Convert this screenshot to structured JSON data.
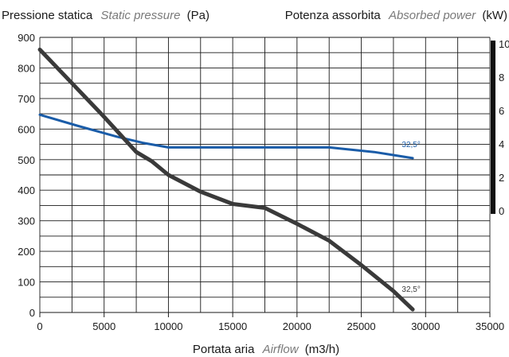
{
  "chart_data": {
    "type": "line",
    "y_title": {
      "it_label": "Pressione statica",
      "en_label": "Static pressure",
      "unit": "(Pa)"
    },
    "y2_title": {
      "it_label": "Potenza assorbita",
      "en_label": "Absorbed power",
      "unit": "(kW)"
    },
    "x_title": {
      "it_label": "Portata aria",
      "en_label": "Airflow",
      "unit": "(m3/h)"
    },
    "xlim": [
      0,
      35000
    ],
    "ylim": [
      0,
      900
    ],
    "x_ticks": [
      "0",
      "5000",
      "10000",
      "15000",
      "20000",
      "25000",
      "30000",
      "35000"
    ],
    "y_ticks": [
      "0",
      "100",
      "200",
      "300",
      "400",
      "500",
      "600",
      "700",
      "800",
      "900"
    ],
    "right_axis_partial_ticks": [
      "10",
      "8",
      "6",
      "4",
      "2",
      "0"
    ],
    "grid": true,
    "series": [
      {
        "label": "32,5°",
        "color": "#1a5ca8",
        "x": [
          0,
          3000,
          6000,
          8000,
          10000,
          15000,
          20000,
          22500,
          26000,
          29000
        ],
        "y": [
          647,
          610,
          575,
          555,
          540,
          540,
          540,
          540,
          525,
          505
        ]
      },
      {
        "label": "32,5°",
        "color": "#3a3a3a",
        "x": [
          0,
          2500,
          5000,
          7500,
          8700,
          10000,
          12500,
          15000,
          17500,
          20000,
          22500,
          25000,
          27500,
          29000
        ],
        "y": [
          860,
          750,
          640,
          525,
          495,
          450,
          395,
          355,
          342,
          290,
          235,
          155,
          70,
          10
        ]
      }
    ]
  }
}
